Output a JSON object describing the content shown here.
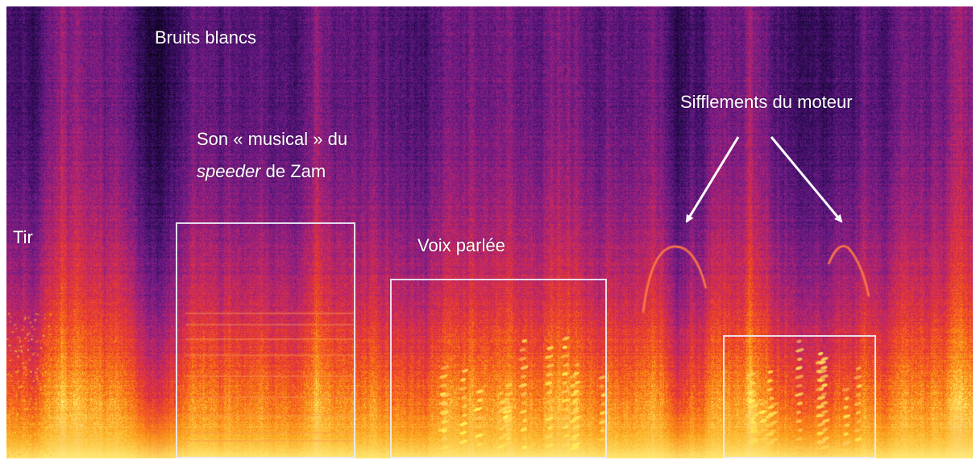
{
  "labels": {
    "white_noise": "Bruits blancs",
    "musical_line1": "Son « musical » du",
    "musical_italic": "speeder",
    "musical_rest": " de Zam",
    "shot": "Tir",
    "voice": "Voix parlée",
    "engine": "Sifflements du moteur"
  },
  "colors": {
    "annotation": "#ffffff",
    "colormap": [
      "#06000d",
      "#2c0b55",
      "#6a1b88",
      "#b8246f",
      "#ed3b2a",
      "#fb8a12",
      "#fde35a",
      "#fffad0"
    ]
  }
}
